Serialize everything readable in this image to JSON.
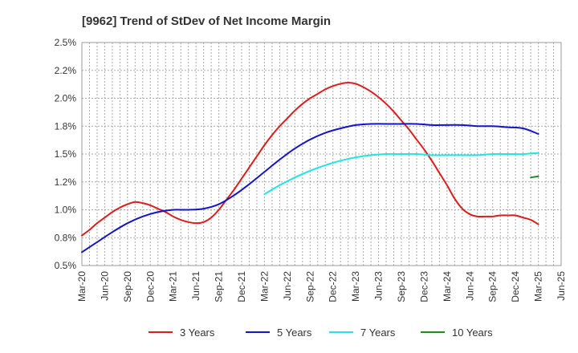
{
  "chart_data": {
    "type": "line",
    "title": "[9962]  Trend of StDev of Net Income Margin",
    "xlabel": "",
    "ylabel": "",
    "x_ticks": [
      "Mar-20",
      "Jun-20",
      "Sep-20",
      "Dec-20",
      "Mar-21",
      "Jun-21",
      "Sep-21",
      "Dec-21",
      "Mar-22",
      "Jun-22",
      "Sep-22",
      "Dec-22",
      "Mar-23",
      "Jun-23",
      "Sep-23",
      "Dec-23",
      "Mar-24",
      "Jun-24",
      "Sep-24",
      "Dec-24",
      "Mar-25",
      "Jun-25"
    ],
    "y_ticks": [
      "0.5%",
      "0.8%",
      "1.0%",
      "1.2%",
      "1.5%",
      "1.8%",
      "2.0%",
      "2.2%",
      "2.5%"
    ],
    "ylim": [
      0.5,
      2.5
    ],
    "grid": true,
    "legend_position": "bottom",
    "series": [
      {
        "name": "3 Years",
        "color": "#dd1c1c",
        "x": [
          "2020-03",
          "2020-04",
          "2020-05",
          "2020-06",
          "2020-07",
          "2020-08",
          "2020-09",
          "2020-10",
          "2020-11",
          "2020-12",
          "2021-01",
          "2021-02",
          "2021-03",
          "2021-04",
          "2021-05",
          "2021-06",
          "2021-07",
          "2021-08",
          "2021-09",
          "2021-10",
          "2021-11",
          "2021-12",
          "2022-01",
          "2022-02",
          "2022-03",
          "2022-04",
          "2022-05",
          "2022-06",
          "2022-07",
          "2022-08",
          "2022-09",
          "2022-10",
          "2022-11",
          "2022-12",
          "2023-01",
          "2023-02",
          "2023-03",
          "2023-04",
          "2023-05",
          "2023-06",
          "2023-07",
          "2023-08",
          "2023-09",
          "2023-10",
          "2023-11",
          "2023-12",
          "2024-01",
          "2024-02",
          "2024-03",
          "2024-04",
          "2024-05",
          "2024-06",
          "2024-07",
          "2024-08",
          "2024-09",
          "2024-10",
          "2024-11",
          "2024-12",
          "2025-01",
          "2025-02",
          "2025-03"
        ],
        "values": [
          0.77,
          0.82,
          0.88,
          0.93,
          0.98,
          1.02,
          1.05,
          1.07,
          1.06,
          1.04,
          1.01,
          0.98,
          0.94,
          0.91,
          0.89,
          0.88,
          0.89,
          0.93,
          1.0,
          1.09,
          1.18,
          1.28,
          1.38,
          1.48,
          1.58,
          1.67,
          1.75,
          1.82,
          1.89,
          1.95,
          2.0,
          2.04,
          2.08,
          2.11,
          2.13,
          2.14,
          2.13,
          2.1,
          2.06,
          2.01,
          1.95,
          1.88,
          1.8,
          1.72,
          1.63,
          1.54,
          1.44,
          1.33,
          1.22,
          1.1,
          1.01,
          0.96,
          0.94,
          0.94,
          0.94,
          0.95,
          0.95,
          0.95,
          0.93,
          0.91,
          0.87
        ]
      },
      {
        "name": "5 Years",
        "color": "#1414c8",
        "x": [
          "2020-03",
          "2020-05",
          "2020-07",
          "2020-09",
          "2020-11",
          "2021-01",
          "2021-03",
          "2021-05",
          "2021-07",
          "2021-09",
          "2021-11",
          "2022-01",
          "2022-03",
          "2022-05",
          "2022-07",
          "2022-09",
          "2022-11",
          "2023-01",
          "2023-03",
          "2023-05",
          "2023-07",
          "2023-09",
          "2023-11",
          "2024-01",
          "2024-03",
          "2024-05",
          "2024-07",
          "2024-09",
          "2024-11",
          "2025-01",
          "2025-03"
        ],
        "values": [
          0.62,
          0.71,
          0.8,
          0.88,
          0.94,
          0.98,
          1.0,
          1.0,
          1.01,
          1.05,
          1.13,
          1.23,
          1.34,
          1.45,
          1.55,
          1.63,
          1.69,
          1.73,
          1.76,
          1.77,
          1.77,
          1.77,
          1.77,
          1.76,
          1.76,
          1.76,
          1.75,
          1.75,
          1.74,
          1.73,
          1.68
        ]
      },
      {
        "name": "7 Years",
        "color": "#22e4e4",
        "x": [
          "2022-03",
          "2022-05",
          "2022-07",
          "2022-09",
          "2022-11",
          "2023-01",
          "2023-03",
          "2023-05",
          "2023-07",
          "2023-09",
          "2023-11",
          "2024-01",
          "2024-03",
          "2024-05",
          "2024-07",
          "2024-09",
          "2024-11",
          "2025-01",
          "2025-03"
        ],
        "values": [
          1.14,
          1.22,
          1.29,
          1.35,
          1.4,
          1.44,
          1.47,
          1.49,
          1.5,
          1.5,
          1.5,
          1.49,
          1.49,
          1.49,
          1.49,
          1.5,
          1.5,
          1.5,
          1.51
        ]
      },
      {
        "name": "10 Years",
        "color": "#228b22",
        "x": [
          "2025-02",
          "2025-03"
        ],
        "values": [
          1.29,
          1.3
        ]
      }
    ]
  }
}
